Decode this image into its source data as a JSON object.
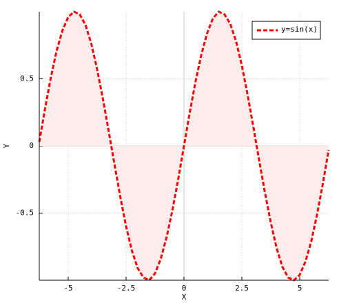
{
  "chart_data": {
    "type": "line",
    "x_label": "X",
    "y_label": "Y",
    "x": [
      -6.25,
      -6.0,
      -5.75,
      -5.5,
      -5.25,
      -5.0,
      -4.75,
      -4.5,
      -4.25,
      -4.0,
      -3.75,
      -3.5,
      -3.25,
      -3.0,
      -2.75,
      -2.5,
      -2.25,
      -2.0,
      -1.75,
      -1.5,
      -1.25,
      -1.0,
      -0.75,
      -0.5,
      -0.25,
      0,
      0.25,
      0.5,
      0.75,
      1.0,
      1.25,
      1.5,
      1.75,
      2.0,
      2.25,
      2.5,
      2.75,
      3.0,
      3.25,
      3.5,
      3.75,
      4.0,
      4.25,
      4.5,
      4.75,
      5.0,
      5.25,
      5.5,
      5.75,
      6.0,
      6.25
    ],
    "series": [
      {
        "name": "y=sin(x)",
        "color": "#ff0000",
        "fill": "#ffecec",
        "values": [
          0.03,
          0.28,
          0.51,
          0.71,
          0.86,
          0.96,
          1.0,
          0.98,
          0.9,
          0.76,
          0.57,
          0.35,
          0.11,
          -0.14,
          -0.38,
          -0.6,
          -0.78,
          -0.91,
          -0.98,
          -1.0,
          -0.95,
          -0.84,
          -0.68,
          -0.48,
          -0.25,
          0,
          0.25,
          0.48,
          0.68,
          0.84,
          0.95,
          1.0,
          0.98,
          0.91,
          0.78,
          0.6,
          0.38,
          0.14,
          -0.11,
          -0.35,
          -0.57,
          -0.76,
          -0.9,
          -0.98,
          -1.0,
          -0.96,
          -0.86,
          -0.71,
          -0.51,
          -0.28,
          -0.03
        ]
      }
    ],
    "xlim": [
      -6.25,
      6.25
    ],
    "ylim": [
      -1.0,
      1.0
    ],
    "xticks": [
      -5,
      -2.5,
      0,
      2.5,
      5
    ],
    "yticks": [
      -0.5,
      0,
      0.5
    ],
    "grid": true,
    "legend": "top-right"
  }
}
